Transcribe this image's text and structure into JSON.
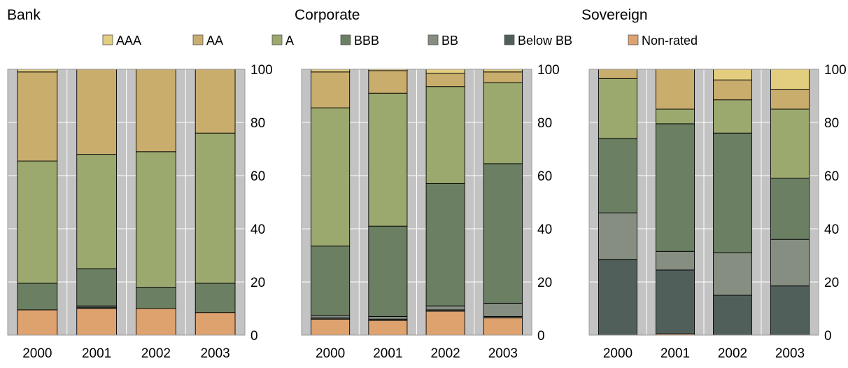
{
  "legend": [
    {
      "name": "AAA",
      "color": "#e3cd7f"
    },
    {
      "name": "AA",
      "color": "#c9ad6d"
    },
    {
      "name": "A",
      "color": "#9ba86e"
    },
    {
      "name": "BBB",
      "color": "#6b7f63"
    },
    {
      "name": "BB",
      "color": "#858e81"
    },
    {
      "name": "Below BB",
      "color": "#515f5a"
    },
    {
      "name": "Non-rated",
      "color": "#dea26f"
    }
  ],
  "chart_data": [
    {
      "type": "bar",
      "stacked": true,
      "title": "Bank",
      "categories": [
        "2000",
        "2001",
        "2002",
        "2003"
      ],
      "ylim": [
        0,
        100
      ],
      "yticks": [
        0,
        20,
        40,
        60,
        80,
        100
      ],
      "series": [
        {
          "name": "Non-rated",
          "values": [
            9.5,
            10,
            10,
            8.5
          ]
        },
        {
          "name": "Below BB",
          "values": [
            0,
            0.5,
            0,
            0
          ]
        },
        {
          "name": "BB",
          "values": [
            0,
            0.5,
            0,
            0
          ]
        },
        {
          "name": "BBB",
          "values": [
            10,
            14,
            8,
            11
          ]
        },
        {
          "name": "A",
          "values": [
            46,
            43,
            51,
            56.5
          ]
        },
        {
          "name": "AA",
          "values": [
            33.5,
            32,
            31,
            24
          ]
        },
        {
          "name": "AAA",
          "values": [
            1,
            0,
            0,
            0
          ]
        }
      ]
    },
    {
      "type": "bar",
      "stacked": true,
      "title": "Corporate",
      "categories": [
        "2000",
        "2001",
        "2002",
        "2003"
      ],
      "ylim": [
        0,
        100
      ],
      "yticks": [
        0,
        20,
        40,
        60,
        80,
        100
      ],
      "series": [
        {
          "name": "Non-rated",
          "values": [
            6,
            5.5,
            9,
            6.5
          ]
        },
        {
          "name": "Below BB",
          "values": [
            0.5,
            0.5,
            0.5,
            0.5
          ]
        },
        {
          "name": "BB",
          "values": [
            1,
            1,
            1.5,
            5
          ]
        },
        {
          "name": "BBB",
          "values": [
            26,
            34,
            46,
            52.5
          ]
        },
        {
          "name": "A",
          "values": [
            52,
            50,
            36.5,
            30.5
          ]
        },
        {
          "name": "AA",
          "values": [
            13.5,
            8.5,
            5,
            4
          ]
        },
        {
          "name": "AAA",
          "values": [
            1,
            0.5,
            1.5,
            1
          ]
        }
      ]
    },
    {
      "type": "bar",
      "stacked": true,
      "title": "Sovereign",
      "categories": [
        "2000",
        "2001",
        "2002",
        "2003"
      ],
      "ylim": [
        0,
        100
      ],
      "yticks": [
        0,
        20,
        40,
        60,
        80,
        100
      ],
      "series": [
        {
          "name": "Non-rated",
          "values": [
            0,
            0.5,
            0,
            0
          ]
        },
        {
          "name": "Below BB",
          "values": [
            28.5,
            24,
            15,
            18.5
          ]
        },
        {
          "name": "BB",
          "values": [
            17.5,
            7,
            16,
            17.5
          ]
        },
        {
          "name": "BBB",
          "values": [
            28,
            48,
            45,
            23
          ]
        },
        {
          "name": "A",
          "values": [
            22.5,
            5.5,
            12.5,
            26
          ]
        },
        {
          "name": "AA",
          "values": [
            3.5,
            15,
            7.5,
            7.5
          ]
        },
        {
          "name": "AAA",
          "values": [
            0,
            0,
            4,
            7.5
          ]
        }
      ]
    }
  ]
}
